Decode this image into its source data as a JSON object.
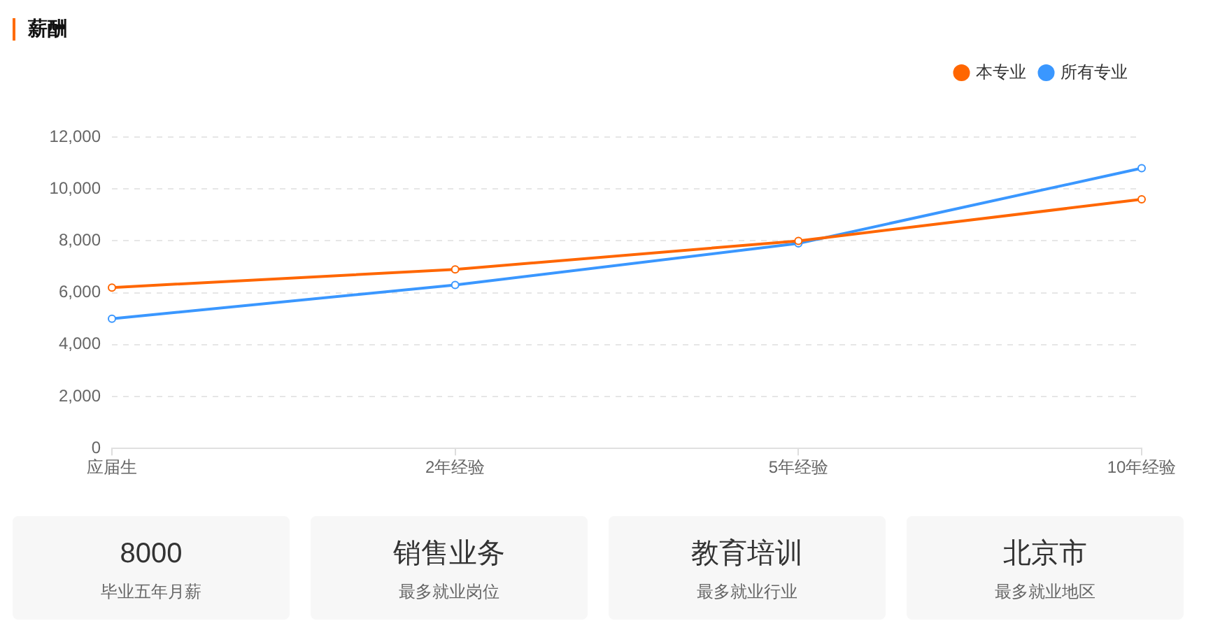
{
  "chart_data": [
    {
      "type": "line",
      "title": "薪酬",
      "categories": [
        "应届生",
        "2年经验",
        "5年经验",
        "10年经验"
      ],
      "series": [
        {
          "name": "本专业",
          "color": "#ff6600",
          "values": [
            6200,
            6900,
            8000,
            9600
          ]
        },
        {
          "name": "所有专业",
          "color": "#3a97ff",
          "values": [
            5000,
            6300,
            7900,
            10800
          ]
        }
      ],
      "ylim": [
        0,
        12000
      ],
      "yticks": [
        0,
        {
          "value": 2000,
          "label": "2,000"
        },
        {
          "value": 4000,
          "label": "4,000"
        },
        {
          "value": 6000,
          "label": "6,000"
        },
        {
          "value": 8000,
          "label": "8,000"
        },
        {
          "value": 10000,
          "label": "10,000"
        },
        {
          "value": 12000,
          "label": "12,000"
        }
      ],
      "grid": "y",
      "legend": "top right",
      "marker": "circle"
    },
    {
      "type": "other",
      "annotations": [
        "8000",
        "毕业五年月薪",
        "销售业务",
        "最多就业岗位",
        "教育培训",
        "最多就业行业",
        "北京市",
        "最多就业地区"
      ]
    }
  ]
}
